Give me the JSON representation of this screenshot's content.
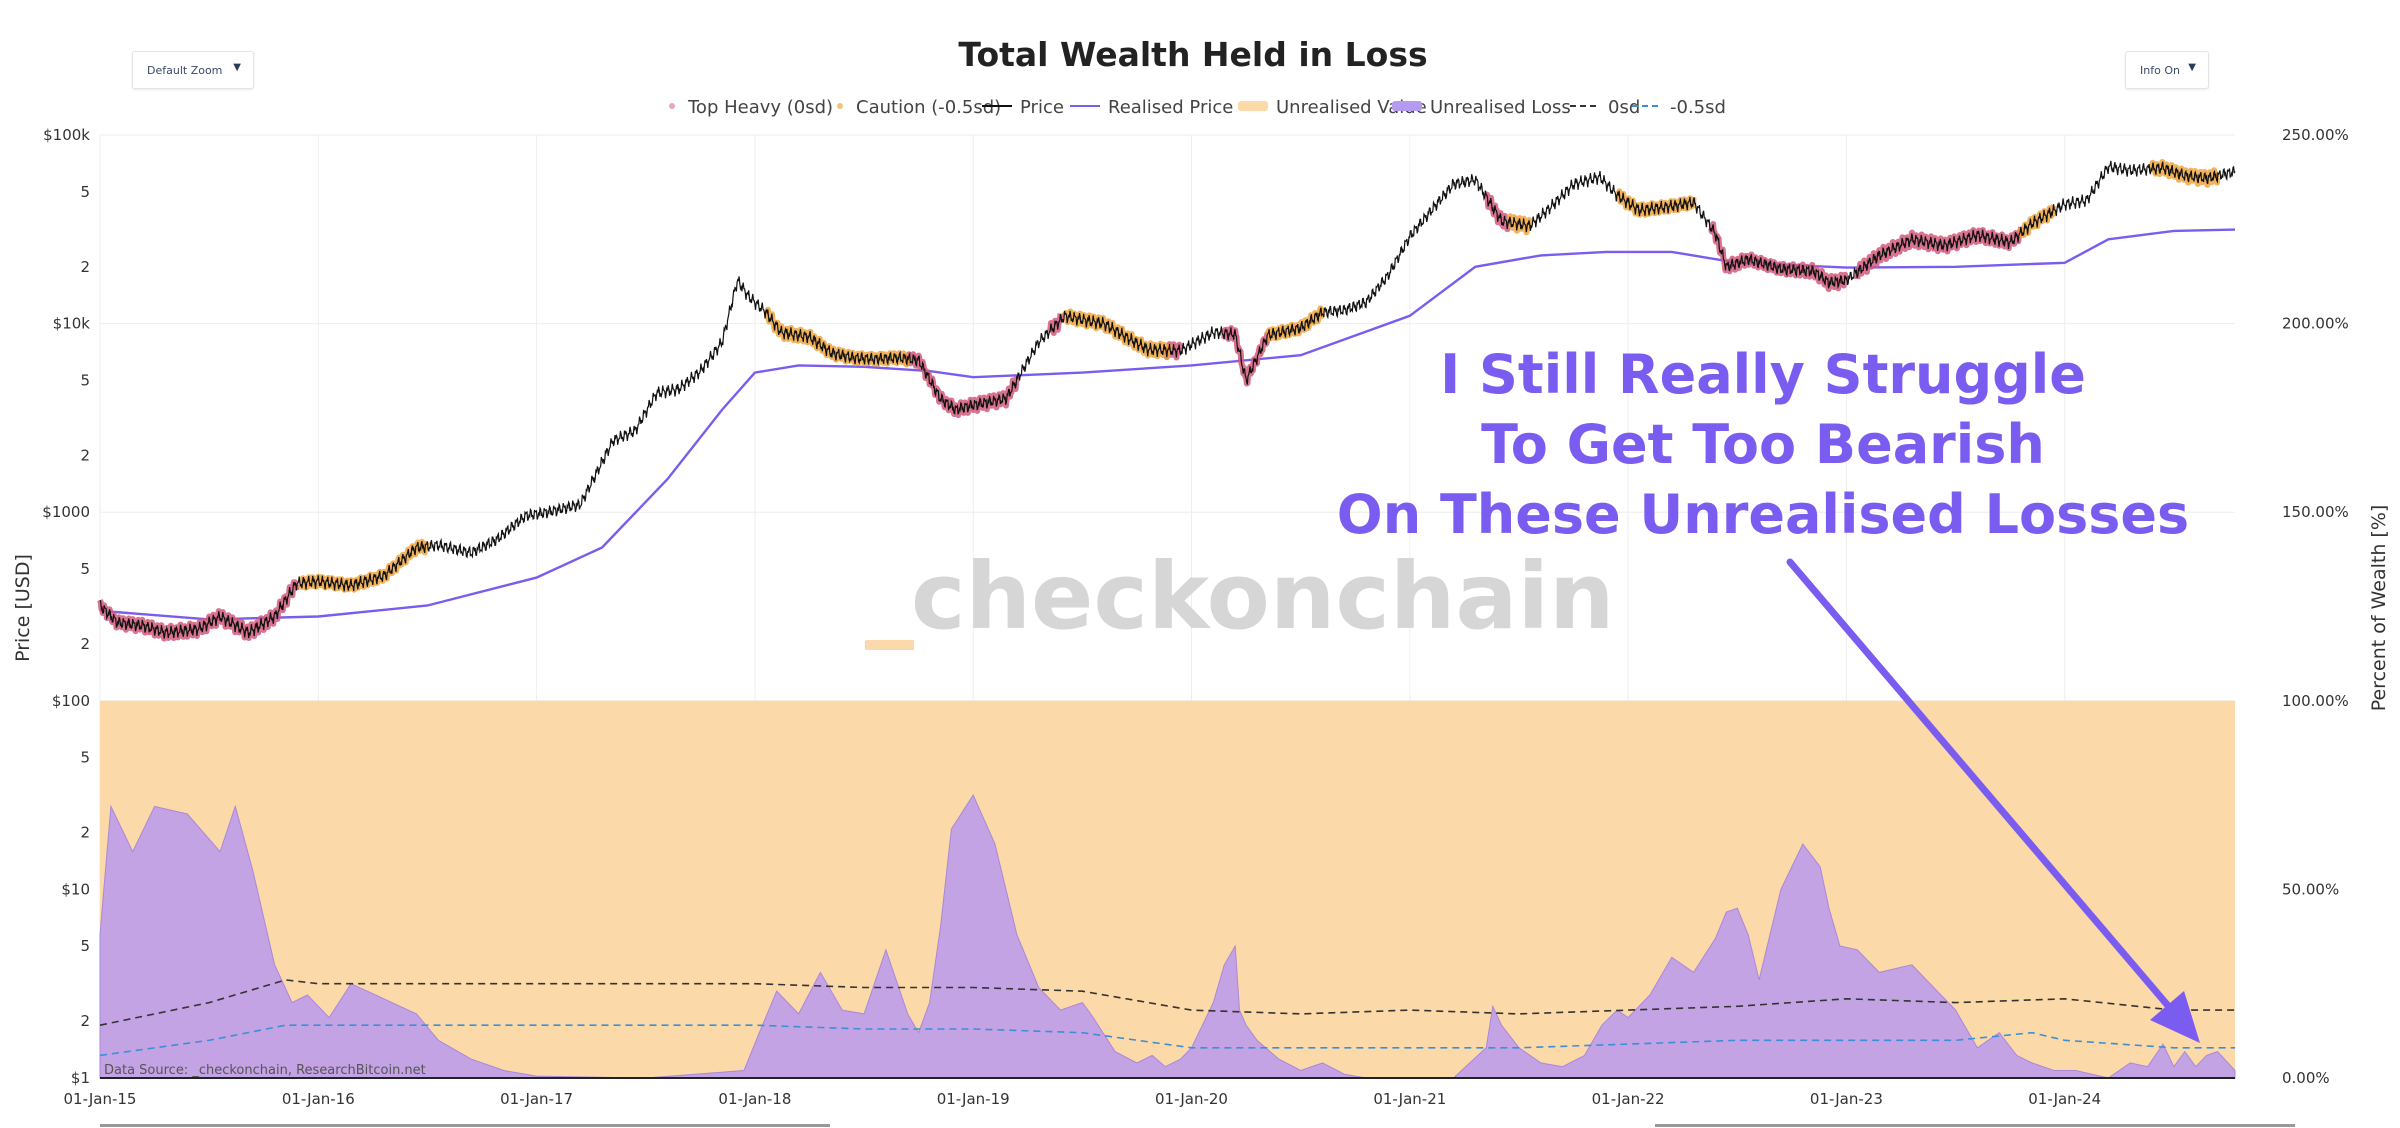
{
  "title": "Total Wealth Held in Loss",
  "controls": {
    "zoom_label": "Default Zoom",
    "info_label": "Info On"
  },
  "legend": [
    {
      "label": "Top Heavy (0sd)",
      "type": "dot",
      "color": "#e8a7b6"
    },
    {
      "label": "Caution (-0.5sd)",
      "type": "dot",
      "color": "#f3c27a"
    },
    {
      "label": "Price",
      "type": "line",
      "color": "#111111"
    },
    {
      "label": "Realised Price",
      "type": "line",
      "color": "#7b5cf0"
    },
    {
      "label": "Unrealised Value",
      "type": "band",
      "color": "#fcd9a8"
    },
    {
      "label": "Unrealised Loss",
      "type": "band",
      "color": "#b49af0"
    },
    {
      "label": "0sd",
      "type": "dash",
      "color": "#333333"
    },
    {
      "label": "-0.5sd",
      "type": "dash",
      "color": "#3b8fd9"
    }
  ],
  "watermark": "_checkonchain",
  "annotation": {
    "lines": [
      "I Still Really Struggle",
      "To Get Too Bearish",
      "On These Unrealised Losses"
    ],
    "color": "#7b5cf0"
  },
  "source": "Data Source: _checkonchain, ResearchBitcoin.net",
  "chart_data": {
    "type": "line",
    "x_ticks": [
      "01-Jan-15",
      "01-Jan-16",
      "01-Jan-17",
      "01-Jan-18",
      "01-Jan-19",
      "01-Jan-20",
      "01-Jan-21",
      "01-Jan-22",
      "01-Jan-23",
      "01-Jan-24"
    ],
    "x_range": [
      2015.0,
      2024.78
    ],
    "y_left_label": "Price [USD]",
    "y_right_label": "Percent of Wealth [%]",
    "y_left_ticks": [
      "$100k",
      "5",
      "2",
      "$10k",
      "5",
      "2",
      "$1000",
      "5",
      "2",
      "$100",
      "5",
      "2",
      "$10",
      "5",
      "2",
      "$1"
    ],
    "y_left_scale": "log",
    "y_left_range": [
      1,
      100000
    ],
    "y_right_ticks": [
      "250.00%",
      "200.00%",
      "150.00%",
      "100.00%",
      "50.00%",
      "0.00%"
    ],
    "y_right_range": [
      0,
      250
    ],
    "series": [
      {
        "name": "Price",
        "color": "#111111",
        "x": [
          2015.0,
          2015.08,
          2015.2,
          2015.3,
          2015.45,
          2015.55,
          2015.68,
          2015.8,
          2015.9,
          2016.0,
          2016.15,
          2016.3,
          2016.45,
          2016.55,
          2016.7,
          2016.82,
          2016.95,
          2017.05,
          2017.2,
          2017.35,
          2017.45,
          2017.55,
          2017.65,
          2017.75,
          2017.85,
          2017.92,
          2017.97,
          2018.05,
          2018.12,
          2018.25,
          2018.35,
          2018.45,
          2018.55,
          2018.65,
          2018.75,
          2018.85,
          2018.92,
          2019.0,
          2019.15,
          2019.3,
          2019.42,
          2019.5,
          2019.6,
          2019.7,
          2019.8,
          2019.95,
          2020.1,
          2020.2,
          2020.25,
          2020.35,
          2020.5,
          2020.6,
          2020.7,
          2020.8,
          2020.9,
          2021.0,
          2021.1,
          2021.2,
          2021.3,
          2021.42,
          2021.55,
          2021.65,
          2021.75,
          2021.87,
          2021.95,
          2022.05,
          2022.2,
          2022.3,
          2022.4,
          2022.45,
          2022.55,
          2022.7,
          2022.85,
          2022.92,
          2023.0,
          2023.15,
          2023.3,
          2023.45,
          2023.6,
          2023.75,
          2023.85,
          2024.0,
          2024.1,
          2024.2,
          2024.3,
          2024.45,
          2024.55,
          2024.65,
          2024.78
        ],
        "y": [
          320,
          260,
          250,
          230,
          240,
          280,
          230,
          280,
          420,
          430,
          410,
          460,
          650,
          670,
          610,
          720,
          960,
          1000,
          1100,
          2400,
          2700,
          4300,
          4500,
          5600,
          8000,
          17000,
          14000,
          11500,
          9000,
          8500,
          7000,
          6600,
          6500,
          6600,
          6400,
          4000,
          3500,
          3700,
          4000,
          8000,
          11000,
          10500,
          10000,
          8500,
          7300,
          7200,
          9000,
          8800,
          5000,
          8700,
          9500,
          11500,
          11800,
          13000,
          18000,
          29000,
          40000,
          55000,
          58000,
          35000,
          33000,
          42000,
          55000,
          60000,
          48000,
          40000,
          42000,
          44000,
          30000,
          20000,
          22000,
          19500,
          19000,
          16500,
          17000,
          23000,
          28000,
          26000,
          29500,
          27000,
          34000,
          43000,
          45000,
          68000,
          65000,
          67000,
          61000,
          59000,
          64000
        ]
      },
      {
        "name": "Realised Price",
        "color": "#7b5cf0",
        "x": [
          2015.0,
          2015.5,
          2016.0,
          2016.5,
          2017.0,
          2017.3,
          2017.6,
          2017.85,
          2018.0,
          2018.2,
          2018.5,
          2018.8,
          2019.0,
          2019.5,
          2020.0,
          2020.5,
          2021.0,
          2021.3,
          2021.6,
          2021.9,
          2022.2,
          2022.5,
          2023.0,
          2023.5,
          2024.0,
          2024.2,
          2024.5,
          2024.78
        ],
        "y": [
          300,
          270,
          280,
          320,
          450,
          650,
          1500,
          3500,
          5500,
          6000,
          5900,
          5600,
          5200,
          5500,
          6000,
          6800,
          11000,
          20000,
          23000,
          24000,
          24000,
          21000,
          19800,
          20000,
          21000,
          28000,
          31000,
          31500
        ]
      },
      {
        "name": "Unrealised Loss",
        "color": "#b49af0",
        "x": [
          2015.0,
          2015.05,
          2015.15,
          2015.25,
          2015.4,
          2015.55,
          2015.62,
          2015.7,
          2015.8,
          2015.88,
          2015.95,
          2016.05,
          2016.15,
          2016.3,
          2016.45,
          2016.55,
          2016.7,
          2016.85,
          2017.0,
          2017.5,
          2017.95,
          2018.02,
          2018.1,
          2018.2,
          2018.3,
          2018.4,
          2018.5,
          2018.6,
          2018.7,
          2018.75,
          2018.8,
          2018.85,
          2018.9,
          2019.0,
          2019.1,
          2019.2,
          2019.3,
          2019.4,
          2019.5,
          2019.55,
          2019.65,
          2019.75,
          2019.82,
          2019.88,
          2019.95,
          2020.0,
          2020.1,
          2020.15,
          2020.2,
          2020.22,
          2020.25,
          2020.3,
          2020.4,
          2020.5,
          2020.6,
          2020.7,
          2020.8,
          2020.9,
          2021.0,
          2021.2,
          2021.35,
          2021.38,
          2021.42,
          2021.5,
          2021.6,
          2021.7,
          2021.8,
          2021.88,
          2021.95,
          2022.0,
          2022.1,
          2022.2,
          2022.3,
          2022.4,
          2022.45,
          2022.5,
          2022.55,
          2022.6,
          2022.7,
          2022.8,
          2022.88,
          2022.92,
          2022.97,
          2023.05,
          2023.15,
          2023.3,
          2023.4,
          2023.5,
          2023.6,
          2023.7,
          2023.78,
          2023.85,
          2023.95,
          2024.05,
          2024.2,
          2024.3,
          2024.38,
          2024.45,
          2024.5,
          2024.55,
          2024.6,
          2024.65,
          2024.7,
          2024.78
        ],
        "y": [
          38,
          72,
          60,
          72,
          70,
          60,
          72,
          55,
          30,
          20,
          22,
          16,
          25,
          21,
          17,
          10,
          5,
          2,
          0.5,
          0,
          2,
          12,
          23,
          17,
          28,
          18,
          17,
          34,
          17,
          12,
          20,
          40,
          66,
          75,
          62,
          38,
          24,
          18,
          20,
          16,
          7,
          4,
          6,
          3,
          5,
          8,
          20,
          30,
          35,
          18,
          14,
          10,
          5,
          2,
          4,
          1,
          0,
          0,
          0,
          0,
          8,
          19,
          14,
          8,
          4,
          3,
          6,
          14,
          18,
          16,
          22,
          32,
          28,
          37,
          44,
          45,
          38,
          26,
          50,
          62,
          56,
          45,
          35,
          34,
          28,
          30,
          24,
          18,
          8,
          12,
          6,
          4,
          2,
          2,
          0,
          4,
          3,
          9,
          3,
          7,
          3,
          6,
          7,
          2
        ]
      },
      {
        "name": "0sd",
        "color": "#333333",
        "dash": true,
        "x": [
          2015.0,
          2015.5,
          2015.85,
          2016.0,
          2016.5,
          2017.0,
          2017.5,
          2018.0,
          2018.5,
          2019.0,
          2019.5,
          2020.0,
          2020.5,
          2021.0,
          2021.5,
          2022.0,
          2022.5,
          2023.0,
          2023.5,
          2024.0,
          2024.5,
          2024.78
        ],
        "y": [
          14,
          20,
          26,
          25,
          25,
          25,
          25,
          25,
          24,
          24,
          23,
          18,
          17,
          18,
          17,
          18,
          19,
          21,
          20,
          21,
          18,
          18
        ]
      },
      {
        "name": "-0.5sd",
        "color": "#3b8fd9",
        "dash": true,
        "x": [
          2015.0,
          2015.5,
          2015.85,
          2016.0,
          2016.5,
          2017.0,
          2017.5,
          2018.0,
          2018.5,
          2019.0,
          2019.5,
          2020.0,
          2020.5,
          2021.0,
          2021.5,
          2022.0,
          2022.5,
          2023.0,
          2023.5,
          2023.85,
          2024.0,
          2024.5,
          2024.78
        ],
        "y": [
          6,
          10,
          14,
          14,
          14,
          14,
          14,
          14,
          13,
          13,
          12,
          8,
          8,
          8,
          8,
          9,
          10,
          10,
          10,
          12,
          10,
          8,
          8
        ]
      }
    ],
    "regions": [
      {
        "name": "Top Heavy (0sd)",
        "color": "#e8a7b6",
        "ranges": [
          [
            2015.0,
            2015.9
          ],
          [
            2018.7,
            2019.2
          ],
          [
            2019.35,
            2019.4
          ],
          [
            2019.88,
            2019.95
          ],
          [
            2020.15,
            2020.35
          ],
          [
            2021.35,
            2021.45
          ],
          [
            2022.38,
            2023.0
          ],
          [
            2023.05,
            2023.8
          ]
        ]
      },
      {
        "name": "Caution (-0.5sd)",
        "color": "#f3c27a",
        "ranges": [
          [
            2015.92,
            2016.5
          ],
          [
            2018.05,
            2018.7
          ],
          [
            2019.42,
            2019.9
          ],
          [
            2020.35,
            2020.6
          ],
          [
            2021.45,
            2021.55
          ],
          [
            2021.95,
            2022.3
          ],
          [
            2023.8,
            2023.95
          ],
          [
            2024.4,
            2024.7
          ]
        ]
      }
    ]
  }
}
